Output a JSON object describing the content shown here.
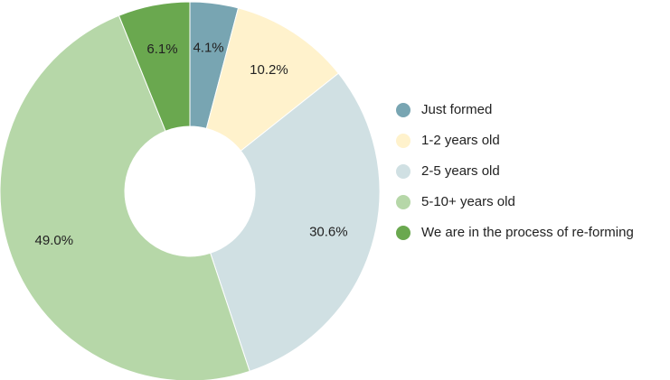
{
  "chart_data": {
    "type": "pie",
    "categories": [
      "Just formed",
      "1-2 years old",
      "2-5 years old",
      "5-10+ years old",
      "We are in the process of re-forming"
    ],
    "values": [
      4.1,
      10.2,
      30.6,
      49.0,
      6.1
    ],
    "value_labels": [
      "4.1%",
      "10.2%",
      "30.6%",
      "49.0%",
      "6.1%"
    ],
    "colors": [
      "#78a5b2",
      "#fff2cc",
      "#d0e0e3",
      "#b6d7a8",
      "#6aa84f"
    ],
    "legend": "right"
  }
}
